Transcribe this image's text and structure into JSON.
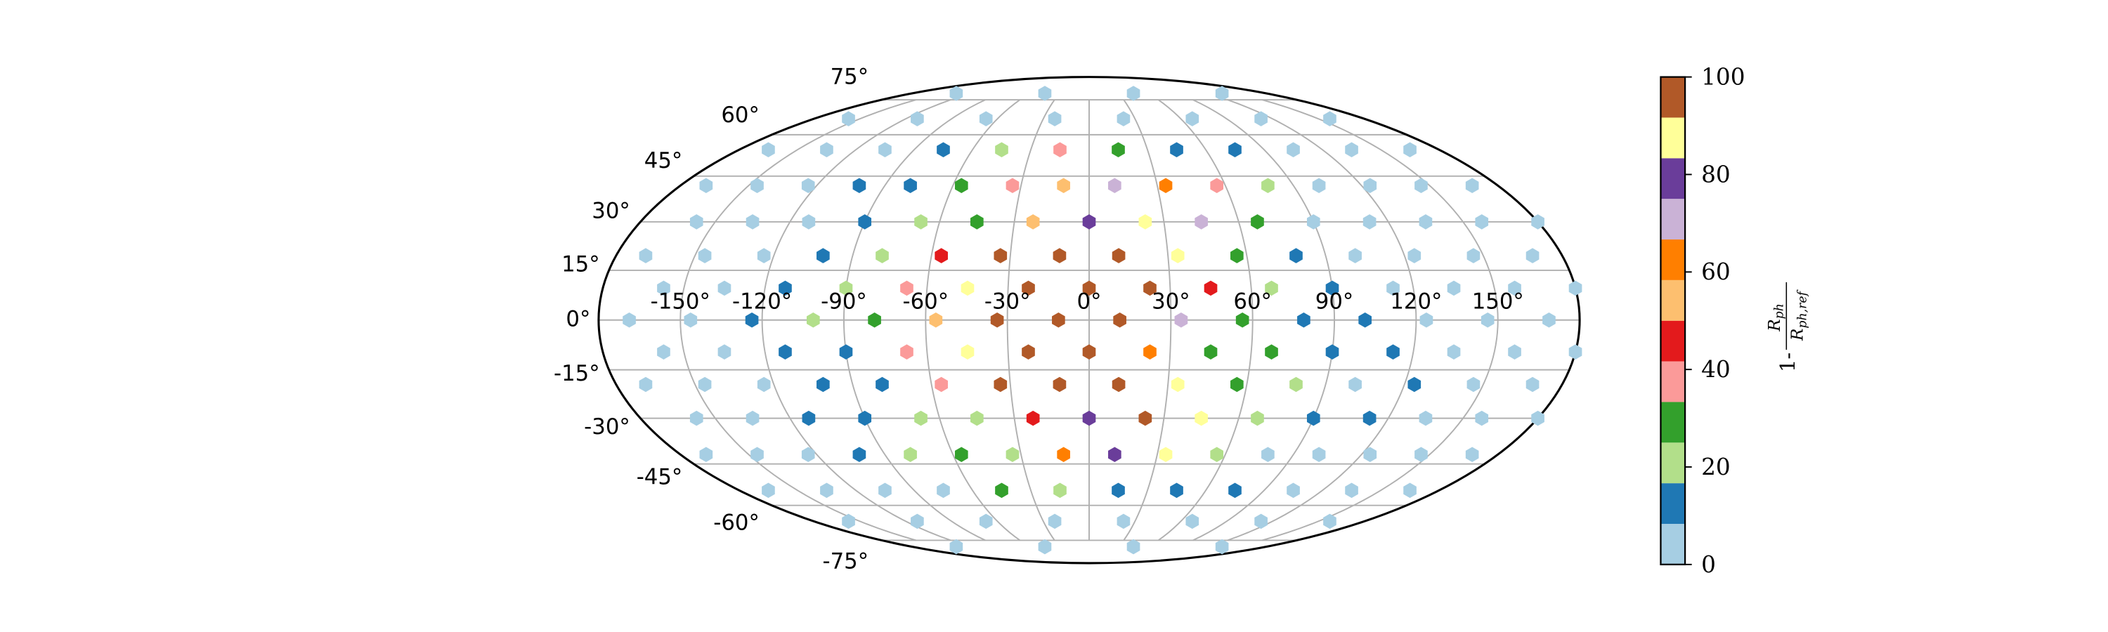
{
  "chart_data": {
    "type": "mollweide",
    "xlim": [
      -180,
      180
    ],
    "ylim": [
      -90,
      90
    ],
    "xticks": [
      {
        "value": -150,
        "label": "-150°"
      },
      {
        "value": -120,
        "label": "-120°"
      },
      {
        "value": -90,
        "label": "-90°"
      },
      {
        "value": -60,
        "label": "-60°"
      },
      {
        "value": -30,
        "label": "-30°"
      },
      {
        "value": 0,
        "label": "0°"
      },
      {
        "value": 30,
        "label": "30°"
      },
      {
        "value": 60,
        "label": "60°"
      },
      {
        "value": 90,
        "label": "90°"
      },
      {
        "value": 120,
        "label": "120°"
      },
      {
        "value": 150,
        "label": "150°"
      }
    ],
    "yticks": [
      {
        "value": -75,
        "label": "-75°"
      },
      {
        "value": -60,
        "label": "-60°"
      },
      {
        "value": -45,
        "label": "-45°"
      },
      {
        "value": -30,
        "label": "-30°"
      },
      {
        "value": -15,
        "label": "-15°"
      },
      {
        "value": 0,
        "label": "0°"
      },
      {
        "value": 15,
        "label": "15°"
      },
      {
        "value": 30,
        "label": "30°"
      },
      {
        "value": 45,
        "label": "45°"
      },
      {
        "value": 60,
        "label": "60°"
      },
      {
        "value": 75,
        "label": "75°"
      }
    ],
    "grid": true,
    "grid_color": "#b0b0b0",
    "colormap": [
      "#a6cee3",
      "#1f78b4",
      "#b2df8a",
      "#33a02c",
      "#fb9a99",
      "#e31a1c",
      "#fdbf6f",
      "#ff7f00",
      "#cab2d6",
      "#6a3d9a",
      "#ffff99",
      "#b15928"
    ],
    "clim": [
      0,
      100
    ],
    "cticks": [
      0,
      20,
      40,
      60,
      80,
      100
    ],
    "colorbar_label": {
      "prefix": "1-",
      "numerator": {
        "base": "R",
        "sub": "ph"
      },
      "denominator": {
        "base": "R",
        "sub": "ph,ref"
      }
    },
    "rings": [
      {
        "lat": 78.28,
        "lon": [
          -135,
          -45,
          45,
          135
        ],
        "values": [
          4,
          4,
          4,
          4
        ]
      },
      {
        "lat": 66.44,
        "lon": [
          -157.5,
          -112.5,
          -67.5,
          -22.5,
          22.5,
          67.5,
          112.5,
          157.5
        ],
        "values": [
          4,
          4,
          4,
          4,
          4,
          4,
          4,
          4
        ]
      },
      {
        "lat": 54.34,
        "lon": [
          -165,
          -135,
          -105,
          -75,
          -45,
          -15,
          15,
          45,
          75,
          105,
          135,
          165
        ],
        "values": [
          4,
          4,
          4,
          12,
          21,
          38,
          29,
          12,
          12,
          4,
          4,
          4
        ]
      },
      {
        "lat": 41.81,
        "lon": [
          -168.75,
          -146.25,
          -123.75,
          -101.25,
          -78.75,
          -56.25,
          -33.75,
          -11.25,
          11.25,
          33.75,
          56.25,
          78.75,
          101.25,
          123.75,
          146.25,
          168.75
        ],
        "values": [
          4,
          4,
          4,
          12,
          12,
          29,
          38,
          54,
          71,
          62,
          38,
          21,
          4,
          4,
          4,
          4
        ]
      },
      {
        "lat": 30,
        "lon": [
          -157.5,
          -135,
          -112.5,
          -90,
          -67.5,
          -45,
          -22.5,
          0,
          22.5,
          45,
          67.5,
          90,
          112.5,
          135,
          157.5,
          180
        ],
        "values": [
          4,
          4,
          4,
          12,
          21,
          29,
          54,
          79,
          88,
          71,
          29,
          4,
          4,
          4,
          4,
          4
        ]
      },
      {
        "lat": 19.47,
        "lon": [
          -168.75,
          -146.25,
          -123.75,
          -101.25,
          -78.75,
          -56.25,
          -33.75,
          -11.25,
          11.25,
          33.75,
          56.25,
          78.75,
          101.25,
          123.75,
          146.25,
          168.75
        ],
        "values": [
          4,
          4,
          4,
          12,
          21,
          46,
          96,
          96,
          96,
          88,
          29,
          12,
          4,
          4,
          4,
          4
        ]
      },
      {
        "lat": 9.59,
        "lon": [
          -157.5,
          -135,
          -112.5,
          -90,
          -67.5,
          -45,
          -22.5,
          0,
          22.5,
          45,
          67.5,
          90,
          112.5,
          135,
          157.5,
          180
        ],
        "values": [
          4,
          4,
          12,
          21,
          38,
          88,
          96,
          96,
          96,
          46,
          21,
          12,
          4,
          4,
          4,
          4
        ]
      },
      {
        "lat": 0,
        "lon": [
          -168.75,
          -146.25,
          -123.75,
          -101.25,
          -78.75,
          -56.25,
          -33.75,
          -11.25,
          11.25,
          33.75,
          56.25,
          78.75,
          101.25,
          123.75,
          146.25,
          168.75
        ],
        "values": [
          4,
          4,
          12,
          21,
          29,
          54,
          96,
          96,
          96,
          71,
          29,
          12,
          12,
          4,
          4,
          4
        ]
      },
      {
        "lat": -9.59,
        "lon": [
          -157.5,
          -135,
          -112.5,
          -90,
          -67.5,
          -45,
          -22.5,
          0,
          22.5,
          45,
          67.5,
          90,
          112.5,
          135,
          157.5,
          180
        ],
        "values": [
          4,
          4,
          12,
          12,
          38,
          88,
          96,
          96,
          62,
          29,
          29,
          12,
          12,
          4,
          4,
          4
        ]
      },
      {
        "lat": -19.47,
        "lon": [
          -168.75,
          -146.25,
          -123.75,
          -101.25,
          -78.75,
          -56.25,
          -33.75,
          -11.25,
          11.25,
          33.75,
          56.25,
          78.75,
          101.25,
          123.75,
          146.25,
          168.75
        ],
        "values": [
          4,
          4,
          4,
          12,
          12,
          38,
          96,
          96,
          96,
          88,
          29,
          21,
          4,
          12,
          4,
          4
        ]
      },
      {
        "lat": -30,
        "lon": [
          -157.5,
          -135,
          -112.5,
          -90,
          -67.5,
          -45,
          -22.5,
          0,
          22.5,
          45,
          67.5,
          90,
          112.5,
          135,
          157.5,
          180
        ],
        "values": [
          4,
          4,
          12,
          12,
          21,
          21,
          46,
          79,
          96,
          88,
          21,
          12,
          12,
          4,
          4,
          4
        ]
      },
      {
        "lat": -41.81,
        "lon": [
          -168.75,
          -146.25,
          -123.75,
          -101.25,
          -78.75,
          -56.25,
          -33.75,
          -11.25,
          11.25,
          33.75,
          56.25,
          78.75,
          101.25,
          123.75,
          146.25,
          168.75
        ],
        "values": [
          4,
          4,
          4,
          12,
          21,
          29,
          21,
          62,
          79,
          88,
          21,
          4,
          4,
          4,
          4,
          4
        ]
      },
      {
        "lat": -54.34,
        "lon": [
          -165,
          -135,
          -105,
          -75,
          -45,
          -15,
          15,
          45,
          75,
          105,
          135,
          165
        ],
        "values": [
          4,
          4,
          4,
          4,
          29,
          21,
          12,
          12,
          12,
          4,
          4,
          4
        ]
      },
      {
        "lat": -66.44,
        "lon": [
          -157.5,
          -112.5,
          -67.5,
          -22.5,
          22.5,
          67.5,
          112.5,
          157.5
        ],
        "values": [
          4,
          4,
          4,
          4,
          4,
          4,
          4,
          4
        ]
      },
      {
        "lat": -78.28,
        "lon": [
          -135,
          -45,
          45,
          135
        ],
        "values": [
          4,
          4,
          4,
          4
        ]
      }
    ]
  }
}
